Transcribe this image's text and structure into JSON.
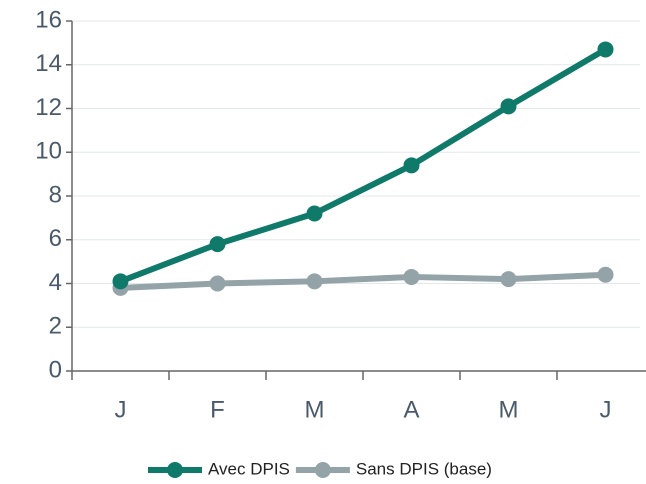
{
  "chart_data": {
    "type": "line",
    "categories": [
      "J",
      "F",
      "M",
      "A",
      "M",
      "J"
    ],
    "series": [
      {
        "name": "Avec DPIS",
        "color": "#0f7a6a",
        "values": [
          4.1,
          5.8,
          7.2,
          9.4,
          12.1,
          14.7
        ]
      },
      {
        "name": "Sans DPIS (base)",
        "color": "#93a3a8",
        "values": [
          3.8,
          4.0,
          4.1,
          4.3,
          4.2,
          4.4
        ]
      }
    ],
    "ylim": [
      0,
      16
    ],
    "yticks": [
      0,
      2,
      4,
      6,
      8,
      10,
      12,
      14,
      16
    ],
    "grid": true,
    "legend": "bottom"
  }
}
